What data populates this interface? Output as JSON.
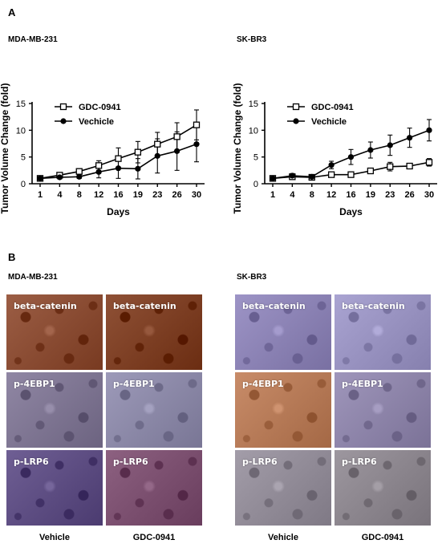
{
  "panel_a": {
    "letter": "A"
  },
  "panel_b": {
    "letter": "B"
  },
  "chart_data": [
    {
      "type": "line",
      "title": "MDA-MB-231",
      "xlabel": "Days",
      "ylabel": "Tumor Volume Change (fold)",
      "x": [
        "1",
        "4",
        "8",
        "12",
        "16",
        "19",
        "23",
        "26",
        "30"
      ],
      "ylim": [
        0,
        15
      ],
      "yticks": [
        "0",
        "5",
        "10",
        "15"
      ],
      "legend_position": "top-left",
      "series": [
        {
          "name": "GDC-0941",
          "marker": "open-square",
          "values": [
            1.0,
            1.6,
            2.3,
            3.4,
            4.7,
            5.9,
            7.4,
            8.8,
            11.0
          ],
          "error": [
            0.2,
            0.3,
            0.5,
            0.9,
            2.0,
            2.0,
            2.2,
            2.6,
            2.8
          ]
        },
        {
          "name": "Vechicle",
          "marker": "filled-circle",
          "values": [
            1.0,
            1.2,
            1.3,
            2.2,
            2.9,
            2.8,
            5.2,
            6.1,
            7.4
          ],
          "error": [
            0.2,
            0.3,
            0.3,
            1.1,
            1.9,
            1.9,
            3.2,
            3.6,
            3.3
          ]
        }
      ]
    },
    {
      "type": "line",
      "title": "SK-BR3",
      "xlabel": "Days",
      "ylabel": "Tumor Volume Change (fold)",
      "x": [
        "1",
        "4",
        "8",
        "12",
        "16",
        "19",
        "23",
        "26",
        "30"
      ],
      "ylim": [
        0,
        15
      ],
      "yticks": [
        "0",
        "5",
        "10",
        "15"
      ],
      "legend_position": "top-left",
      "series": [
        {
          "name": "GDC-0941",
          "marker": "open-square",
          "values": [
            1.0,
            1.3,
            1.2,
            1.7,
            1.7,
            2.4,
            3.2,
            3.3,
            4.0
          ],
          "error": [
            0.1,
            0.2,
            0.2,
            0.3,
            0.3,
            0.3,
            0.8,
            0.5,
            0.7
          ]
        },
        {
          "name": "Vechicle",
          "marker": "filled-circle",
          "values": [
            1.0,
            1.5,
            1.3,
            3.5,
            5.0,
            6.3,
            7.2,
            8.6,
            10.0
          ],
          "error": [
            0.2,
            0.4,
            0.3,
            0.7,
            1.4,
            1.5,
            1.9,
            1.8,
            2.0
          ]
        }
      ]
    }
  ],
  "ihc": {
    "left": {
      "title": "MDA-MB-231",
      "columns": [
        "Vehicle",
        "GDC-0941"
      ],
      "rows": [
        {
          "labels": [
            "beta-catenin",
            "beta-catenin"
          ],
          "colors": [
            "#8a4c33",
            "#7d3f24"
          ]
        },
        {
          "labels": [
            "p-4EBP1",
            "p-4EBP1"
          ],
          "colors": [
            "#7e7592",
            "#8b88a7"
          ]
        },
        {
          "labels": [
            "p-LRP6",
            "p-LRP6"
          ],
          "colors": [
            "#5d4d82",
            "#7b4f6f"
          ]
        }
      ]
    },
    "right": {
      "title": "SK-BR3",
      "columns": [
        "Vehicle",
        "GDC-0941"
      ],
      "rows": [
        {
          "labels": [
            "beta-catenin",
            "beta-catenin"
          ],
          "colors": [
            "#8b82b4",
            "#9892c0"
          ]
        },
        {
          "labels": [
            "p-4EBP1",
            "p-4EBP1"
          ],
          "colors": [
            "#b67a57",
            "#8d84a9"
          ]
        },
        {
          "labels": [
            "p-LRP6",
            "p-LRP6"
          ],
          "colors": [
            "#918b97",
            "#8b858d"
          ]
        }
      ]
    }
  }
}
